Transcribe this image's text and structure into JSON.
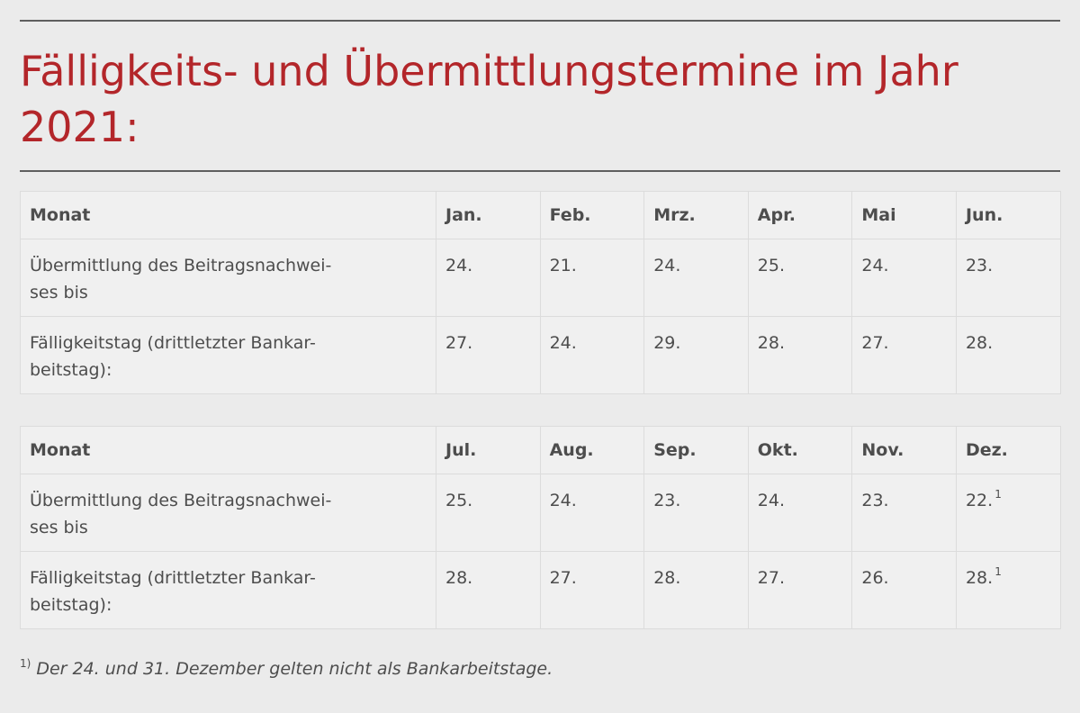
{
  "title": "Fälligkeits- und Übermittlungstermine im Jahr 2021:",
  "tables": [
    {
      "header_label": "Monat",
      "months": [
        "Jan.",
        "Feb.",
        "Mrz.",
        "Apr.",
        "Mai",
        "Jun."
      ],
      "rows": [
        {
          "label_line1": "Übermittlung des Beitragsnachwei-",
          "label_line2": "ses bis",
          "values": [
            "24.",
            "21.",
            "24.",
            "25.",
            "24.",
            "23."
          ],
          "notes": [
            "",
            "",
            "",
            "",
            "",
            ""
          ]
        },
        {
          "label_line1": "Fälligkeitstag (drittletzter Bankar-",
          "label_line2": "beitstag):",
          "values": [
            "27.",
            "24.",
            "29.",
            "28.",
            "27.",
            "28."
          ],
          "notes": [
            "",
            "",
            "",
            "",
            "",
            ""
          ]
        }
      ]
    },
    {
      "header_label": "Monat",
      "months": [
        "Jul.",
        "Aug.",
        "Sep.",
        "Okt.",
        "Nov.",
        "Dez."
      ],
      "rows": [
        {
          "label_line1": "Übermittlung des Beitragsnachwei-",
          "label_line2": "ses bis",
          "values": [
            "25.",
            "24.",
            "23.",
            "24.",
            "23.",
            "22."
          ],
          "notes": [
            "",
            "",
            "",
            "",
            "",
            "1"
          ]
        },
        {
          "label_line1": "Fälligkeitstag (drittletzter Bankar-",
          "label_line2": "beitstag):",
          "values": [
            "28.",
            "27.",
            "28.",
            "27.",
            "26.",
            "28."
          ],
          "notes": [
            "",
            "",
            "",
            "",
            "",
            "1"
          ]
        }
      ]
    }
  ],
  "footnote": {
    "mark": "1)",
    "text": "Der 24. und 31. Dezember gelten nicht als Bankarbeitstage."
  },
  "colors": {
    "title": "#b3262a",
    "background": "#ebebeb",
    "table_background": "#f0f0f0",
    "rule": "#5f5f5f"
  }
}
